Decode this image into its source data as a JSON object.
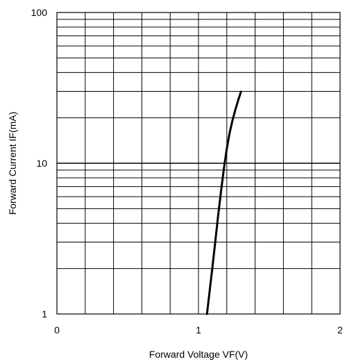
{
  "chart_data": {
    "type": "line",
    "title": "",
    "xlabel": "Forward Voltage VF(V)",
    "ylabel": "Forward Current IF(mA)",
    "xlim": [
      0,
      2
    ],
    "ylim": [
      1,
      100
    ],
    "yscale": "log",
    "grid": true,
    "x_ticks": [
      0,
      1,
      2
    ],
    "x_tick_labels": [
      "0",
      "1",
      "2"
    ],
    "y_ticks": [
      1,
      10,
      100
    ],
    "y_tick_labels": [
      "1",
      "10",
      "100"
    ],
    "series": [
      {
        "x": [
          1.06,
          1.08,
          1.1,
          1.12,
          1.14,
          1.16,
          1.18,
          1.2,
          1.22,
          1.24,
          1.26,
          1.28,
          1.3
        ],
        "y": [
          1.0,
          1.45,
          2.1,
          3.1,
          4.6,
          6.6,
          9.3,
          12.5,
          15.9,
          19.2,
          22.6,
          26.1,
          29.8
        ],
        "color": "#000000"
      }
    ]
  }
}
